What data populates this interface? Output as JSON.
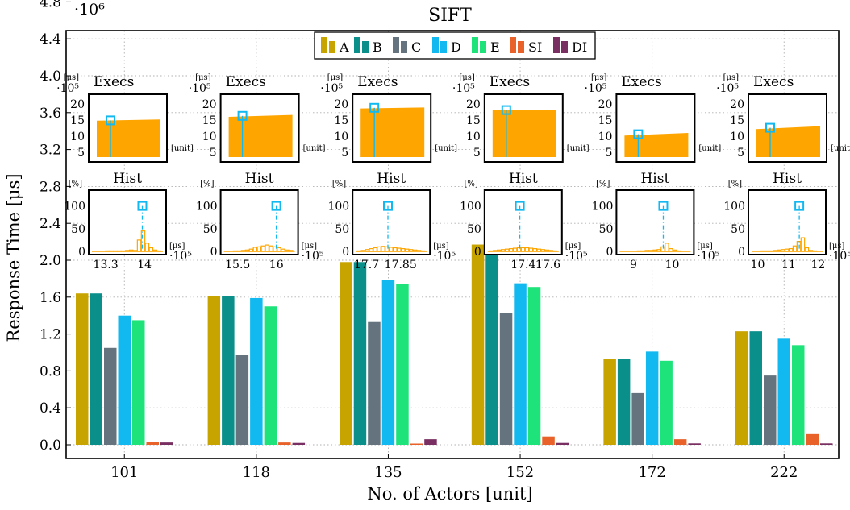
{
  "chart_data": {
    "type": "bar",
    "title": "SIFT",
    "xlabel": "No. of Actors [unit]",
    "ylabel": "Response Time [μs]",
    "y_multiplier": "·10⁶",
    "ylim": [
      0,
      5.1
    ],
    "yticks": [
      "0.0",
      "0.4",
      "0.8",
      "1.2",
      "1.6",
      "2.0",
      "2.4",
      "2.8",
      "3.2",
      "3.6",
      "4.0",
      "4.4",
      "4.8"
    ],
    "grid": true,
    "legend_position": "top-center",
    "categories": [
      "101",
      "118",
      "135",
      "152",
      "172",
      "222"
    ],
    "series": [
      {
        "name": "A",
        "color": "#c8a400",
        "values": [
          1.64,
          1.61,
          1.98,
          2.17,
          0.93,
          1.23
        ]
      },
      {
        "name": "B",
        "color": "#0b8f8a",
        "values": [
          1.64,
          1.61,
          1.98,
          2.17,
          0.93,
          1.23
        ]
      },
      {
        "name": "C",
        "color": "#64737d",
        "values": [
          1.05,
          0.97,
          1.33,
          1.43,
          0.56,
          0.75
        ]
      },
      {
        "name": "D",
        "color": "#12b9f0",
        "values": [
          1.4,
          1.59,
          1.79,
          1.75,
          1.01,
          1.15
        ]
      },
      {
        "name": "E",
        "color": "#1ee37a",
        "values": [
          1.35,
          1.5,
          1.74,
          1.71,
          0.91,
          1.08
        ]
      },
      {
        "name": "SI",
        "color": "#e8622a",
        "values": [
          0.03,
          0.025,
          0.01,
          0.09,
          0.06,
          0.115
        ]
      },
      {
        "name": "DI",
        "color": "#7a2f62",
        "values": [
          0.025,
          0.02,
          0.06,
          0.02,
          0.015,
          0.015
        ]
      }
    ],
    "insets": {
      "execs_title": "Execs",
      "execs_yunit": "[μs]",
      "execs_multiplier": "·10⁵",
      "execs_xunit": "[unit]",
      "execs_yticks": [
        "20",
        "15",
        "10",
        "5"
      ],
      "hist_title": "Hist",
      "hist_yunit": "[%]",
      "hist_xunit": "[μs]",
      "hist_multiplier": "·10⁵",
      "hist_yticks": [
        "100",
        "50",
        "0"
      ],
      "fill_color": "#ffa500",
      "marker_color": "#12b9f0",
      "panels": [
        {
          "execs_start": 14.8,
          "execs_end": 15.2,
          "execs_marker": 14.9,
          "hist_xticks": [
            "13.3",
            "14"
          ],
          "hist_bars": [
            0,
            0,
            0,
            1,
            1,
            1,
            1,
            1,
            2,
            3,
            2,
            25,
            45,
            18,
            8,
            3,
            1
          ],
          "hist_marker": 0.72
        },
        {
          "execs_start": 16.0,
          "execs_end": 16.6,
          "execs_marker": 16.3,
          "hist_xticks": [
            "15.5",
            "16"
          ],
          "hist_bars": [
            0,
            0,
            1,
            1,
            2,
            3,
            5,
            9,
            10,
            12,
            14,
            12,
            10,
            8,
            5,
            3,
            2
          ],
          "hist_marker": 0.75
        },
        {
          "execs_start": 18.6,
          "execs_end": 18.9,
          "execs_marker": 18.8,
          "hist_xticks": [
            "17.7",
            "17.85"
          ],
          "hist_bars": [
            1,
            2,
            4,
            6,
            8,
            10,
            11,
            10,
            9,
            8,
            7,
            6,
            5,
            4,
            3,
            2,
            1
          ],
          "hist_marker": 0.45
        },
        {
          "execs_start": 18.0,
          "execs_end": 18.2,
          "execs_marker": 18.1,
          "hist_xticks": [
            "17.4",
            "17.6"
          ],
          "hist_bars": [
            1,
            2,
            3,
            4,
            5,
            6,
            7,
            8,
            8,
            8,
            7,
            6,
            5,
            4,
            3,
            2,
            1
          ],
          "hist_marker": 0.45
        },
        {
          "execs_start": 10.2,
          "execs_end": 11.0,
          "execs_marker": 10.6,
          "hist_xticks": [
            "9",
            "10"
          ],
          "hist_bars": [
            0,
            0,
            0,
            0,
            1,
            1,
            2,
            2,
            3,
            4,
            10,
            18,
            6,
            3,
            1,
            0,
            0
          ],
          "hist_marker": 0.62
        },
        {
          "execs_start": 12.2,
          "execs_end": 13.1,
          "execs_marker": 12.6,
          "hist_xticks": [
            "10",
            "11",
            "12"
          ],
          "hist_bars": [
            0,
            0,
            1,
            1,
            1,
            2,
            3,
            4,
            5,
            6,
            12,
            22,
            30,
            8,
            2,
            1,
            0
          ],
          "hist_marker": 0.68
        }
      ]
    }
  }
}
